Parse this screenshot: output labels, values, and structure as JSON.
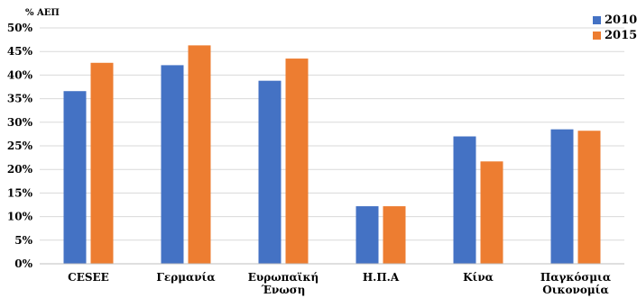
{
  "chart_data": {
    "type": "bar",
    "ylabel": "% ΑΕΠ",
    "categories": [
      [
        "CESEE"
      ],
      [
        "Γερμανία"
      ],
      [
        "Ευρωπαϊκή",
        "Ένωση"
      ],
      [
        "Η.Π.Α"
      ],
      [
        "Κίνα"
      ],
      [
        "Παγκόσμια",
        "Οικονομία"
      ]
    ],
    "series": [
      {
        "name": "2010",
        "color": "#4472C4",
        "values": [
          36.6,
          42.1,
          38.8,
          12.2,
          27.0,
          28.5
        ]
      },
      {
        "name": "2015",
        "color": "#ED7D31",
        "values": [
          42.6,
          46.3,
          43.5,
          12.2,
          21.7,
          28.2
        ]
      }
    ],
    "ylim": [
      0,
      50
    ],
    "yticks": [
      "0%",
      "5%",
      "10%",
      "15%",
      "20%",
      "25%",
      "30%",
      "35%",
      "40%",
      "45%",
      "50%"
    ],
    "grid": true,
    "legend": "top-right"
  }
}
